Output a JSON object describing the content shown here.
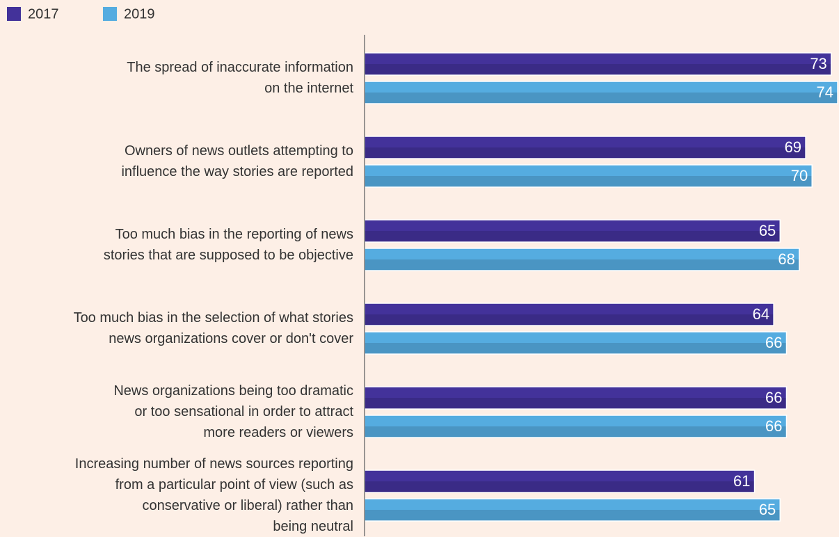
{
  "chart_data": {
    "type": "bar",
    "orientation": "horizontal",
    "categories": [
      "The spread of inaccurate information\non the internet",
      "Owners of news outlets attempting to\ninfluence the way stories are reported",
      "Too much bias in the reporting of news\nstories that are supposed to be objective",
      "Too much bias in the selection of what stories\nnews organizations cover or don't cover",
      "News organizations being too dramatic\nor too sensational in order to attract\nmore readers or viewers",
      "Increasing number of news sources reporting\nfrom a particular point of view (such as\nconservative or liberal) rather than\nbeing neutral"
    ],
    "series": [
      {
        "name": "2017",
        "color": "#43329a",
        "values": [
          73,
          69,
          65,
          64,
          66,
          61
        ]
      },
      {
        "name": "2019",
        "color": "#55ace0",
        "values": [
          74,
          70,
          68,
          66,
          66,
          65
        ]
      }
    ],
    "xlim": [
      0,
      74
    ]
  }
}
